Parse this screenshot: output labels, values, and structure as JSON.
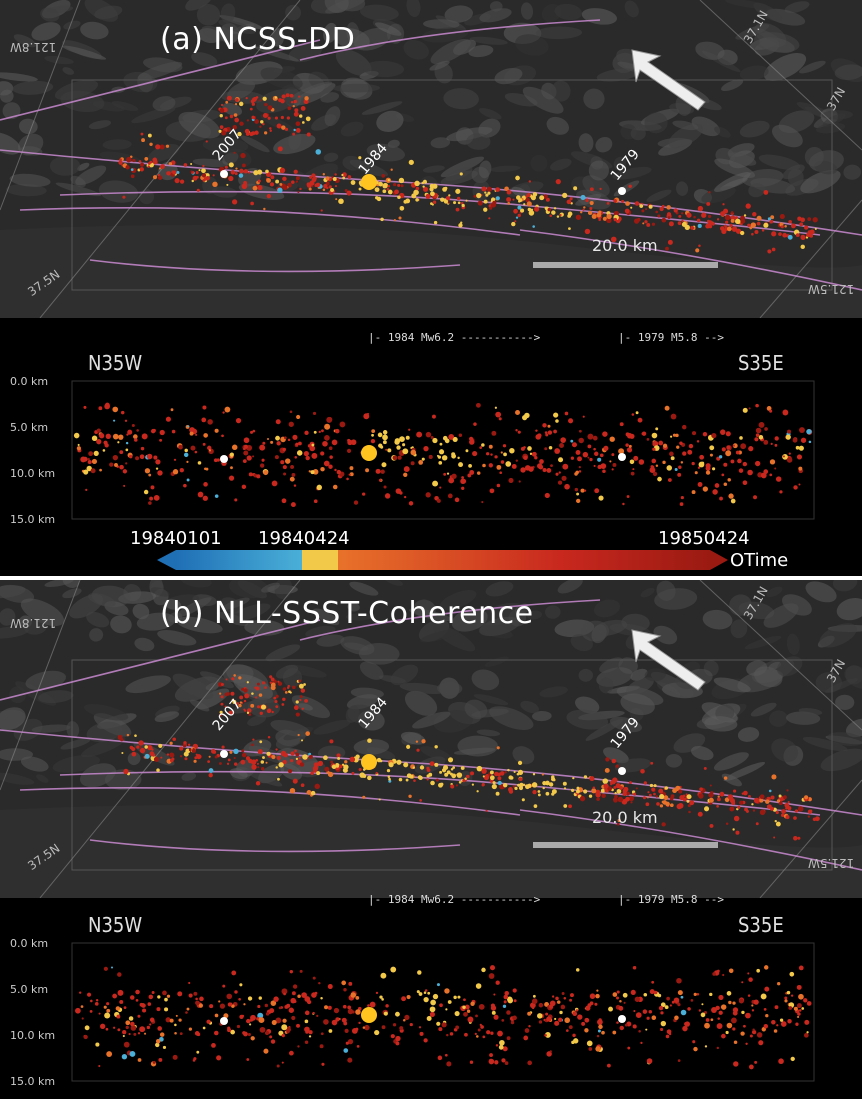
{
  "panel_a": {
    "title": "(a) NCSS-DD",
    "year_labels": [
      "2007",
      "1984",
      "1979"
    ],
    "scale_label": "20.0 km",
    "geo_labels": [
      "121.8W",
      "37.1N",
      "37N",
      "37.5N",
      "121.5W"
    ]
  },
  "panel_b": {
    "title": "(b) NLL-SSST-Coherence",
    "year_labels": [
      "2007",
      "1984",
      "1979"
    ],
    "scale_label": "20.0 km",
    "geo_labels": [
      "121.8W",
      "37.1N",
      "37N",
      "37.5N",
      "121.5W"
    ]
  },
  "rupture_a": {
    "r1984": "|- 1984 Mw6.2 ----------->",
    "r1979": "|- 1979 M5.8 -->"
  },
  "rupture_b": {
    "r1984": "|- 1984 Mw6.2 ----------->",
    "r1979": "|- 1979 M5.8 -->"
  },
  "section_a": {
    "left": "N35W",
    "right": "S35E",
    "depths": [
      "0.0 km",
      "5.0 km",
      "10.0 km",
      "15.0 km"
    ]
  },
  "section_b": {
    "left": "N35W",
    "right": "S35E",
    "depths": [
      "0.0 km",
      "5.0 km",
      "10.0 km",
      "15.0 km"
    ]
  },
  "colorbar": {
    "start": "19840101",
    "mid": "19840424",
    "end": "19850424",
    "label": "OTime",
    "colors": [
      "#1f6fb5",
      "#4ab0d8",
      "#f3c94a",
      "#e8722a",
      "#c8281e",
      "#9a1a12"
    ]
  },
  "markers": {
    "mainshock_color": "#ffc41f",
    "event_color": "#ffffff"
  }
}
